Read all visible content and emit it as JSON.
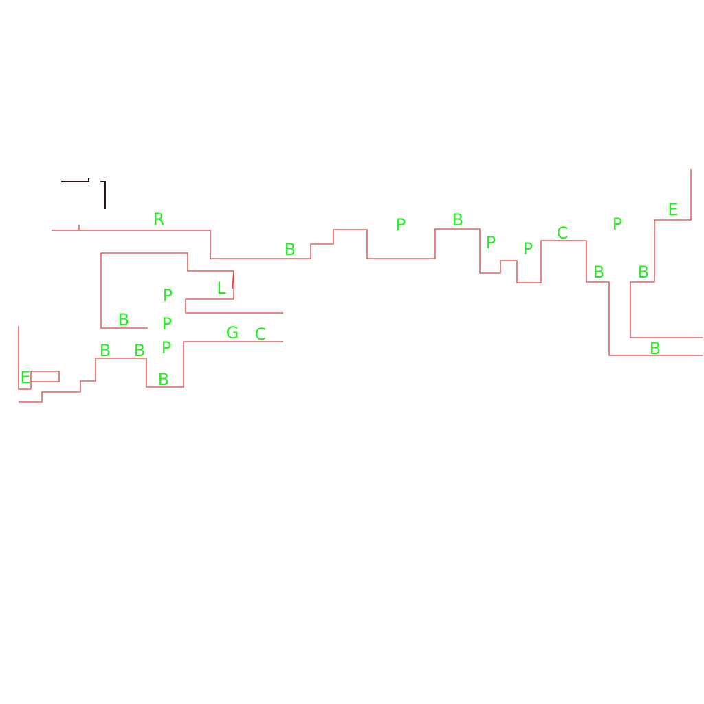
{
  "colors": {
    "wall": "#e2403f",
    "label": "#22ee22",
    "marker": "#2a1414"
  },
  "labels": [
    "R",
    "B",
    "P",
    "B",
    "P",
    "P",
    "C",
    "P",
    "E",
    "B",
    "B",
    "B",
    "L",
    "P",
    "P",
    "P",
    "B",
    "G",
    "C",
    "B",
    "B",
    "B",
    "E"
  ]
}
